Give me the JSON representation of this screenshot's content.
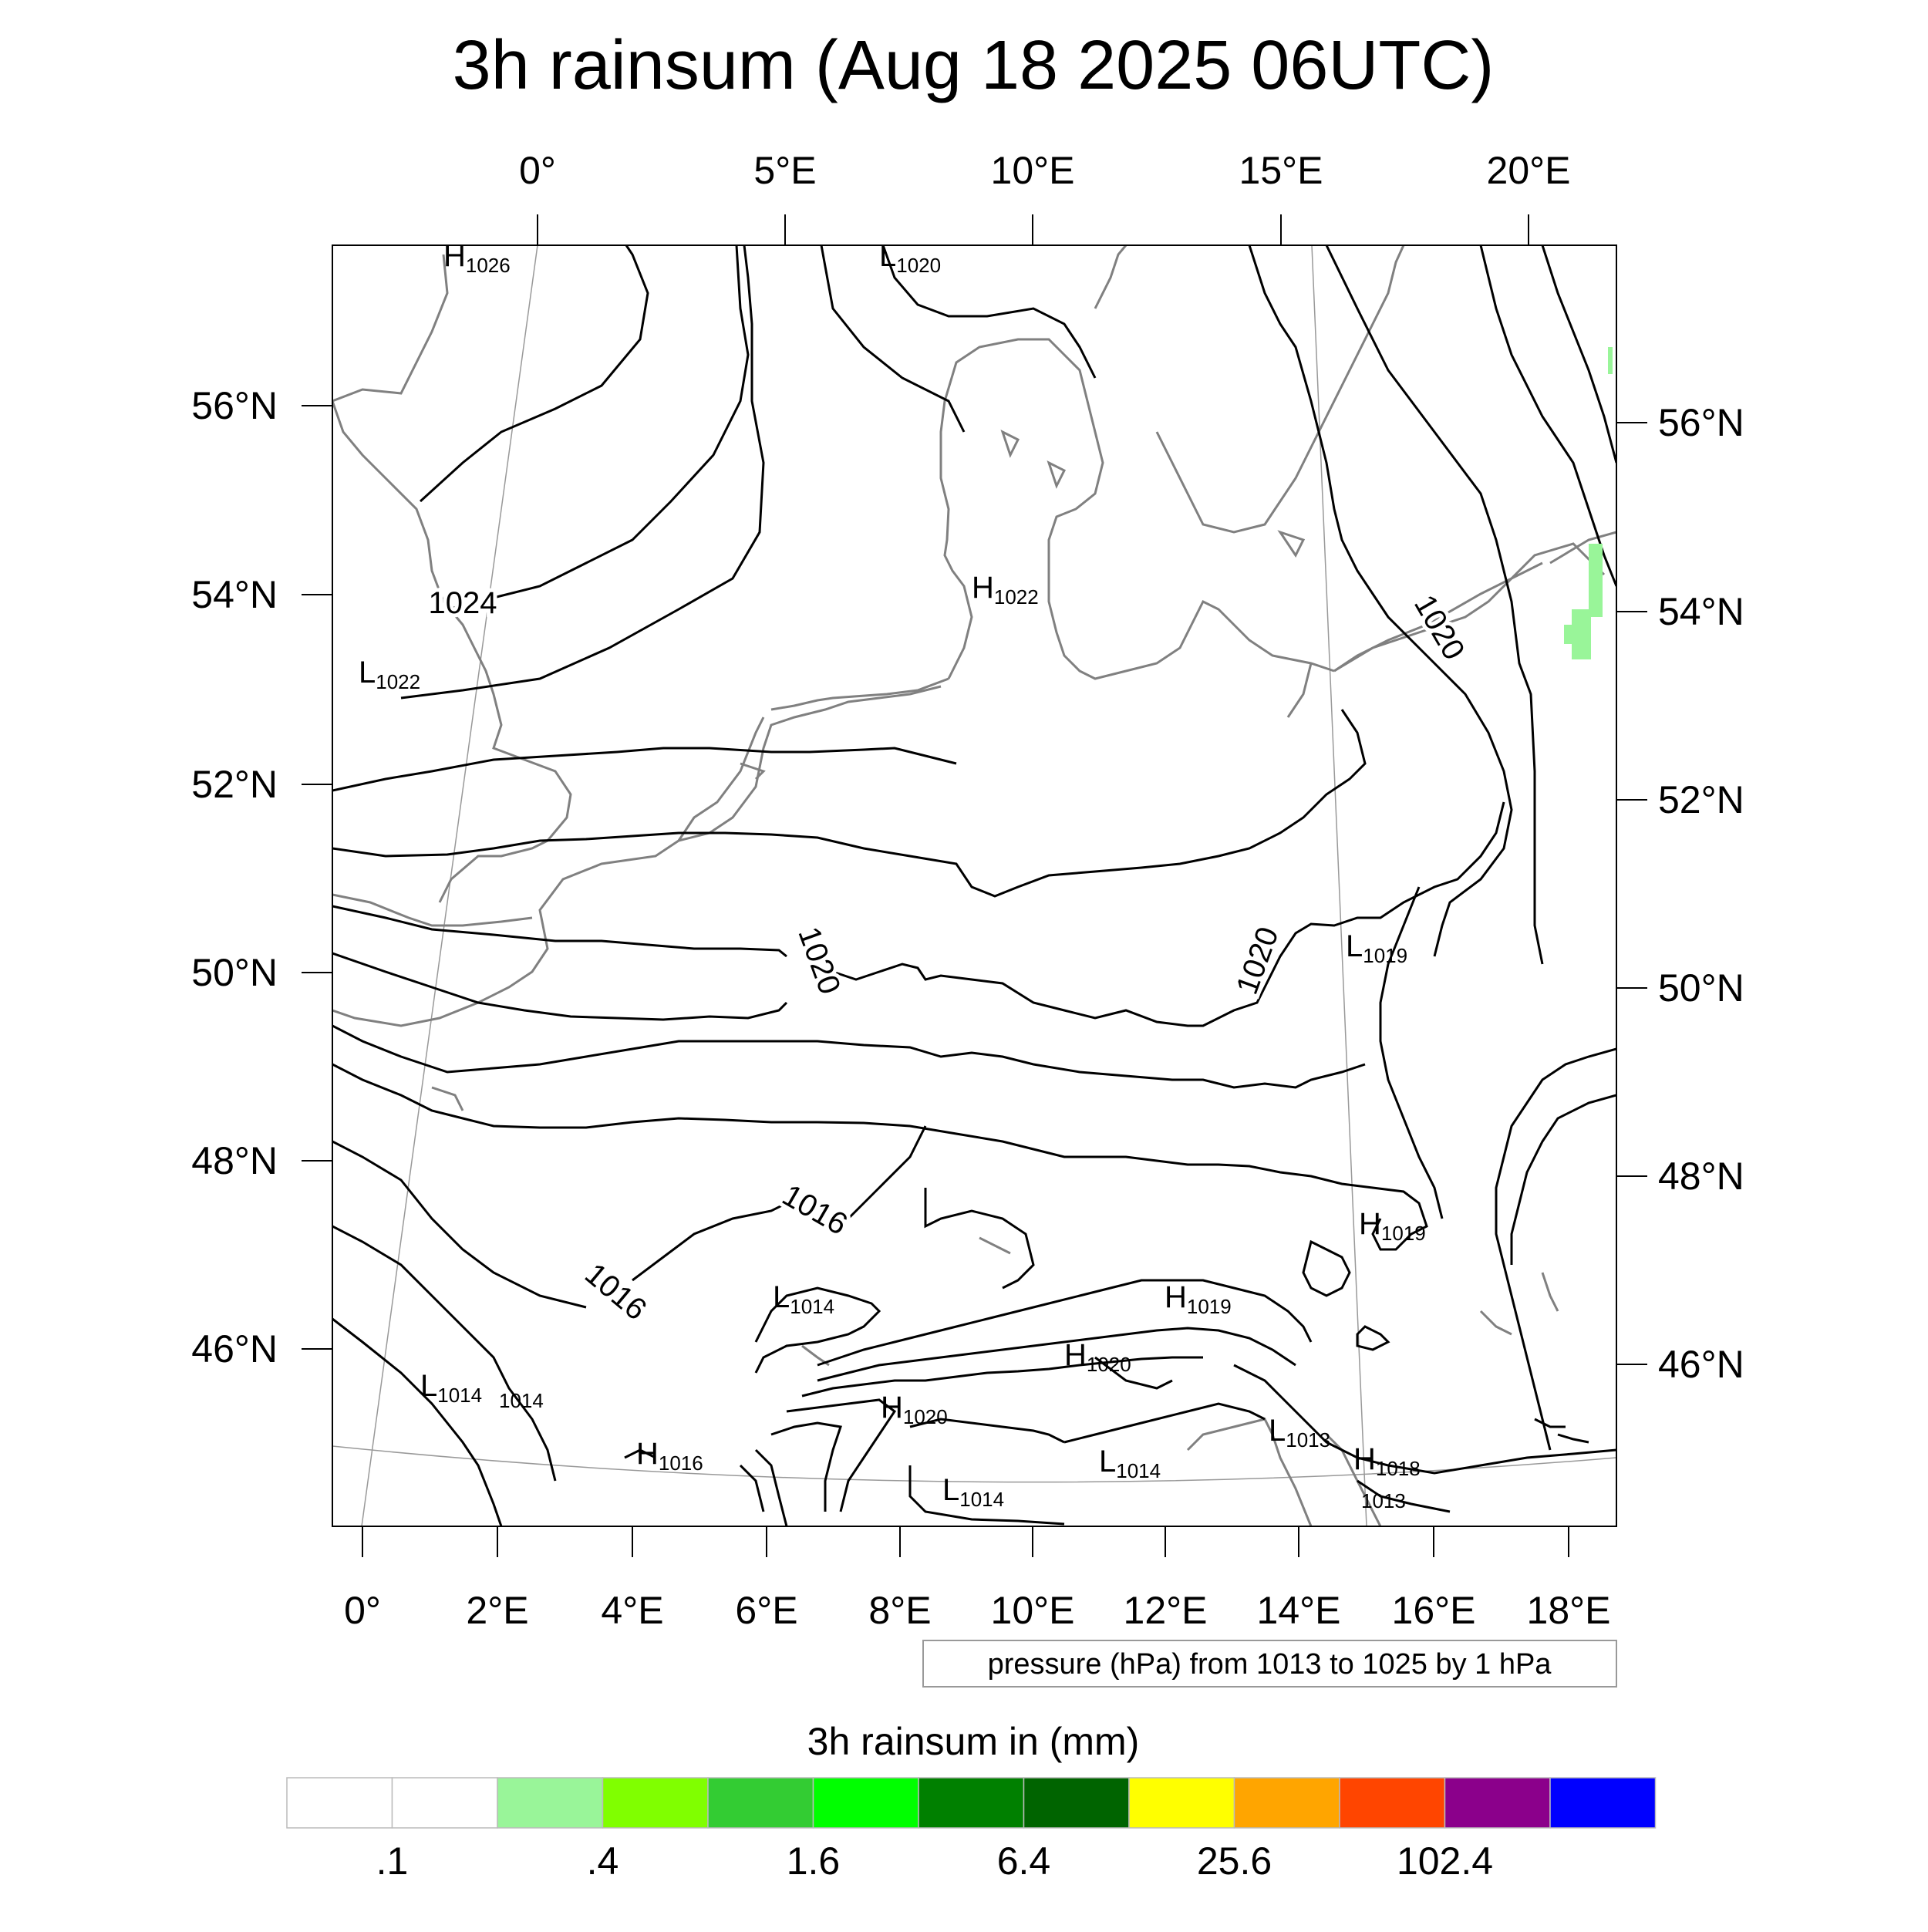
{
  "title": "3h rainsum (Aug 18 2025 06UTC)",
  "top_lon_labels": [
    "0°",
    "5°E",
    "10°E",
    "15°E",
    "20°E"
  ],
  "bottom_lon_labels": [
    "0°",
    "2°E",
    "4°E",
    "6°E",
    "8°E",
    "10°E",
    "12°E",
    "14°E",
    "16°E",
    "18°E"
  ],
  "left_lat_labels": [
    "56°N",
    "54°N",
    "52°N",
    "50°N",
    "48°N",
    "46°N"
  ],
  "right_lat_labels": [
    "56°N",
    "54°N",
    "52°N",
    "50°N",
    "48°N",
    "46°N"
  ],
  "isobar_labels": [
    "1024",
    "1020",
    "1020",
    "1020",
    "1016",
    "1016"
  ],
  "pressure_centers": [
    {
      "type": "H",
      "value": "1026"
    },
    {
      "type": "L",
      "value": "1020"
    },
    {
      "type": "H",
      "value": "1022"
    },
    {
      "type": "L",
      "value": "1022"
    },
    {
      "type": "L",
      "value": "1019"
    },
    {
      "type": "H",
      "value": "1019"
    },
    {
      "type": "L",
      "value": "1014"
    },
    {
      "type": "H",
      "value": "1019"
    },
    {
      "type": "H",
      "value": "1020"
    },
    {
      "type": "H",
      "value": "1020"
    },
    {
      "type": "L",
      "value": "1014"
    },
    {
      "type": "L",
      "value": "1013"
    },
    {
      "type": "H",
      "value": "1018"
    },
    {
      "type": "H",
      "value": "1016"
    },
    {
      "type": "L",
      "value": "1014"
    },
    {
      "type": "L",
      "value": "1014"
    }
  ],
  "minor_labels": [
    "1014",
    "1013"
  ],
  "contour_note": "pressure (hPa) from 1013 to 1025 by 1 hPa",
  "colorbar": {
    "title": "3h rainsum in (mm)",
    "colors": [
      "#ffffff",
      "#ffffff",
      "#99f599",
      "#80ff00",
      "#33cc33",
      "#00ff00",
      "#008000",
      "#006400",
      "#ffff00",
      "#ffa500",
      "#ff4500",
      "#8b008b",
      "#0000ff"
    ],
    "labels": [
      ".1",
      ".4",
      "1.6",
      "6.4",
      "25.6",
      "102.4"
    ]
  },
  "colors": {
    "isobar": "#000000",
    "coastline": "#808080",
    "rain_light": "#99f599"
  }
}
